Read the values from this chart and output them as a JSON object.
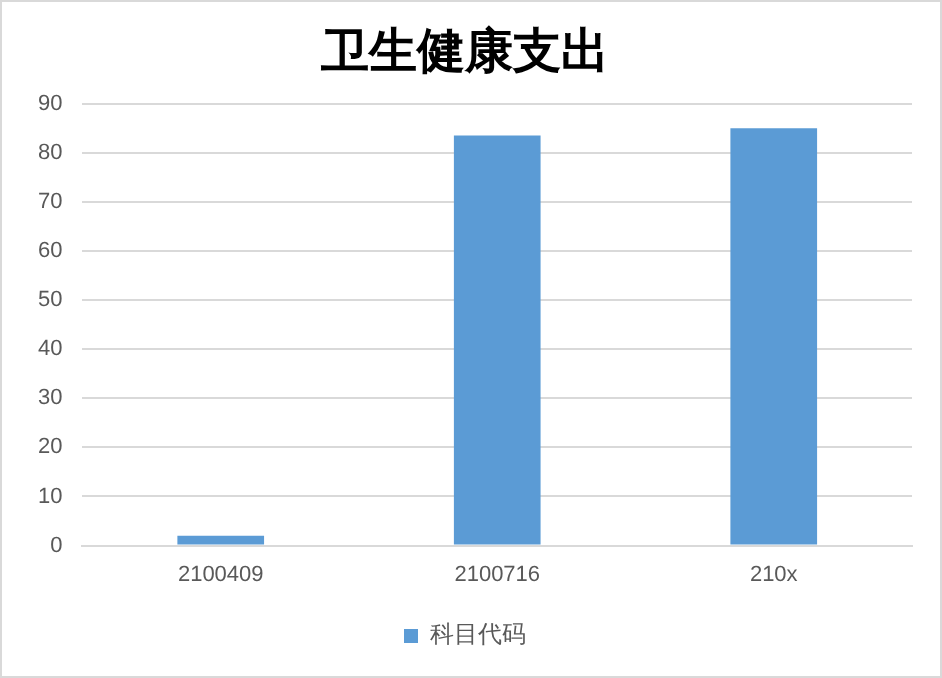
{
  "chart_data": {
    "type": "bar",
    "title": "卫生健康支出",
    "categories": [
      "2100409",
      "2100716",
      "210x"
    ],
    "series": [
      {
        "name": "科目代码",
        "color": "#5b9bd5",
        "values": [
          2,
          83.5,
          85
        ]
      }
    ],
    "ylim": [
      0,
      90
    ],
    "yticks": [
      0,
      10,
      20,
      30,
      40,
      50,
      60,
      70,
      80,
      90
    ],
    "grid": "y",
    "legend": "bottom"
  }
}
